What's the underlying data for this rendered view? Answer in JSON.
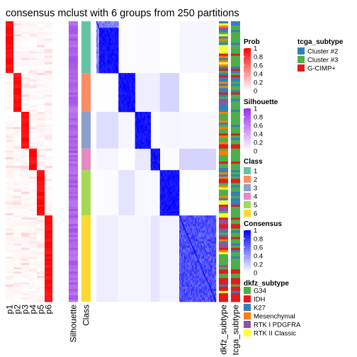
{
  "chart_data": {
    "type": "heatmap",
    "title": "consensus mclust with 6 groups from 250 partitions",
    "group_sizes": [
      24,
      18,
      17,
      10,
      21,
      40
    ],
    "columns": {
      "prob_labels": [
        "p1",
        "p2",
        "p3",
        "p4",
        "p5",
        "p6"
      ],
      "silhouette_label": "Silhouette",
      "class_label": "Class",
      "dkfz_label": "dkfz_subtype",
      "tcga_label": "tcga_subtype"
    },
    "legends": {
      "prob": {
        "title": "Prob",
        "ticks": [
          "1",
          "0.8",
          "0.6",
          "0.4",
          "0.2",
          "0"
        ],
        "color_low": "#ffffff",
        "color_high": "#ff0000"
      },
      "silhouette": {
        "title": "Silhouette",
        "ticks": [
          "1",
          "0.8",
          "0.6",
          "0.4",
          "0.2",
          "0"
        ],
        "color_low": "#ffffff",
        "color_high": "#9a2bf0"
      },
      "class": {
        "title": "Class",
        "items": [
          {
            "label": "1",
            "color": "#66c2a5"
          },
          {
            "label": "2",
            "color": "#fc8d62"
          },
          {
            "label": "3",
            "color": "#8da0cb"
          },
          {
            "label": "4",
            "color": "#e78ac3"
          },
          {
            "label": "5",
            "color": "#a6d854"
          },
          {
            "label": "6",
            "color": "#ffd92f"
          }
        ]
      },
      "consensus": {
        "title": "Consensus",
        "ticks": [
          "1",
          "0.8",
          "0.6",
          "0.4",
          "0.2",
          "0"
        ],
        "color_low": "#ffffff",
        "color_high": "#0000ff"
      },
      "dkfz": {
        "title": "dkfz_subtype",
        "items": [
          {
            "label": "G34",
            "color": "#4daf4a"
          },
          {
            "label": "IDH",
            "color": "#e41a1c"
          },
          {
            "label": "K27",
            "color": "#377eb8"
          },
          {
            "label": "Mesenchymal",
            "color": "#ff7f00"
          },
          {
            "label": "RTK I PDGFRA",
            "color": "#984ea3"
          },
          {
            "label": "RTK II Classic",
            "color": "#ffff33"
          }
        ]
      },
      "tcga": {
        "title": "tcga_subtype",
        "items": [
          {
            "label": "Cluster #2",
            "color": "#377eb8"
          },
          {
            "label": "Cluster #3",
            "color": "#4daf4a"
          },
          {
            "label": "G-CIMP+",
            "color": "#e41a1c"
          }
        ]
      }
    },
    "silhouette_color": "#a64dea",
    "palette_prob": "#ff0000",
    "palette_consensus": "#0000ff"
  }
}
